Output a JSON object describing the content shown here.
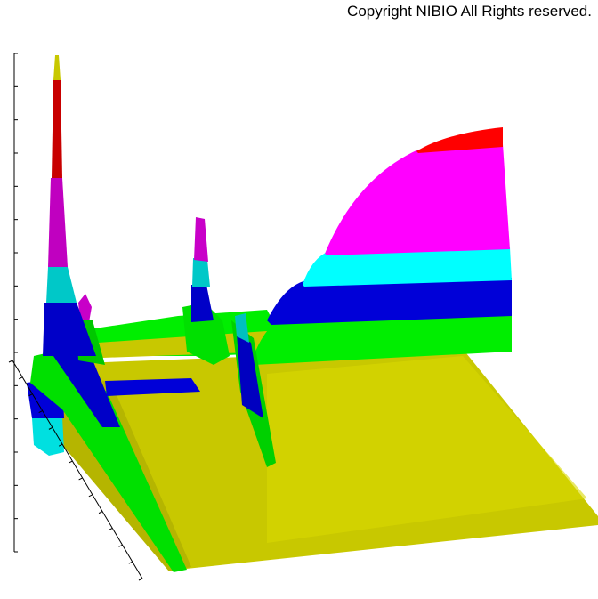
{
  "copyright": "Copyright NIBIO All Rights reserved.",
  "chart_data": {
    "type": "surface3d",
    "title": "",
    "grid": false,
    "axes": {
      "vertical": {
        "ticks": 16,
        "label_visible": true
      },
      "front": {
        "ticks": 14
      }
    },
    "color_bands": [
      "#c8c800",
      "#00e800",
      "#0000d8",
      "#00e8e8",
      "#ff00ff",
      "#e80000"
    ],
    "features": [
      {
        "name": "tall-spike",
        "peak_level": 0.98
      },
      {
        "name": "small-spike",
        "peak_level": 0.42
      },
      {
        "name": "middle-peak",
        "peak_level": 0.7
      },
      {
        "name": "right-plateau",
        "peak_level": 0.76
      }
    ]
  }
}
